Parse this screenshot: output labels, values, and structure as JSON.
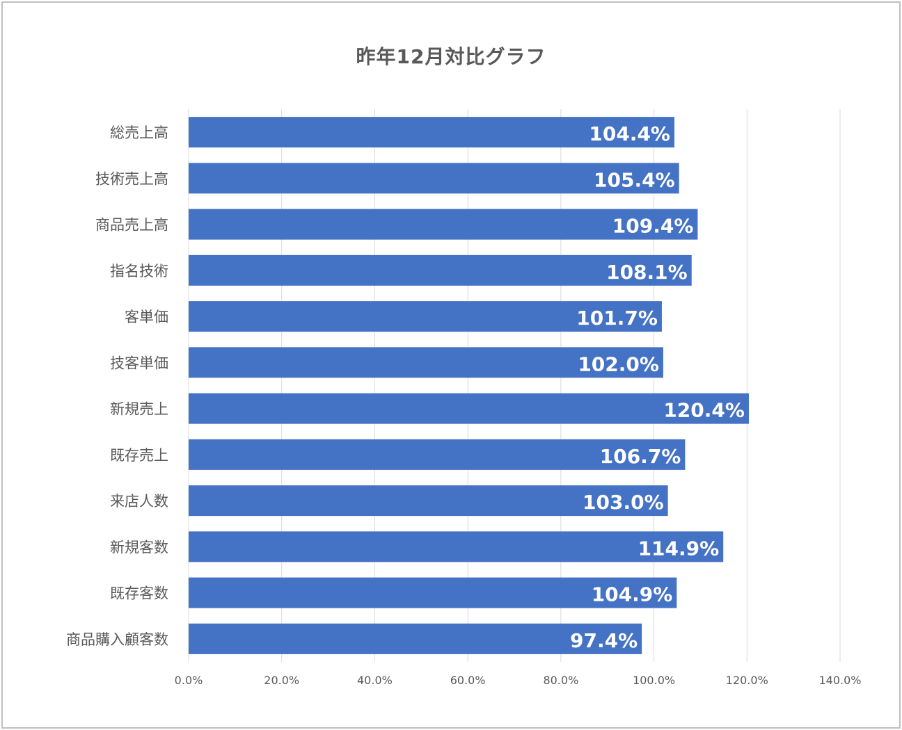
{
  "chart_data": {
    "type": "bar",
    "orientation": "horizontal",
    "title": "昨年12月対比グラフ",
    "categories": [
      "総売上高",
      "技術売上高",
      "商品売上高",
      "指名技術",
      "客単価",
      "技客単価",
      "新規売上",
      "既存売上",
      "来店人数",
      "新規客数",
      "既存客数",
      "商品購入顧客数"
    ],
    "values": [
      104.4,
      105.4,
      109.4,
      108.1,
      101.7,
      102.0,
      120.4,
      106.7,
      103.0,
      114.9,
      104.9,
      97.4
    ],
    "value_labels": [
      "104.4%",
      "105.4%",
      "109.4%",
      "108.1%",
      "101.7%",
      "102.0%",
      "120.4%",
      "106.7%",
      "103.0%",
      "114.9%",
      "104.9%",
      "97.4%"
    ],
    "xlim": [
      0,
      140
    ],
    "x_ticks": [
      0,
      20,
      40,
      60,
      80,
      100,
      120,
      140
    ],
    "x_tick_labels": [
      "0.0%",
      "20.0%",
      "40.0%",
      "60.0%",
      "80.0%",
      "100.0%",
      "120.0%",
      "140.0%"
    ],
    "grid": "vertical",
    "bar_color": "#4472c4",
    "grid_color": "#d9d9d9",
    "label_color": "#ffffff"
  }
}
